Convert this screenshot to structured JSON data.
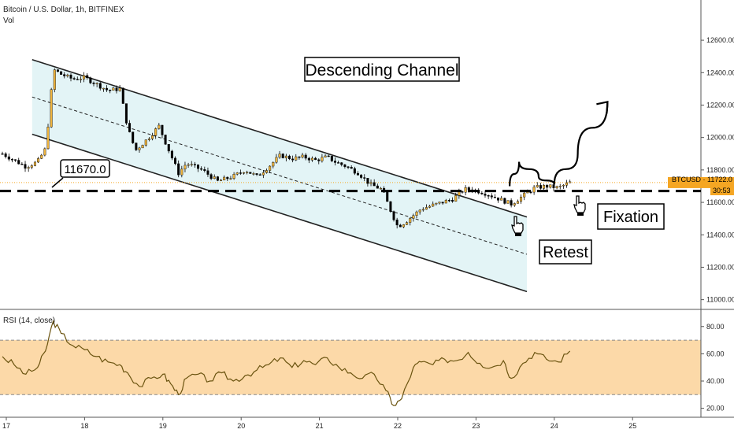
{
  "header": {
    "symbol_title": "Bitcoin / U.S. Dollar, 1h, BITFINEX",
    "volume_label": "Vol"
  },
  "price_axis": {
    "ticks": [
      "12600.00",
      "12400.00",
      "12200.00",
      "12000.00",
      "11800.00",
      "11600.00",
      "11400.00",
      "11200.00",
      "11000.00"
    ]
  },
  "last_price": {
    "label": "BTCUSD · 11722.0",
    "countdown": "30:53",
    "color": "#f5a623"
  },
  "rsi_pane": {
    "label": "RSI (14, close)",
    "ticks": [
      "80.00",
      "60.00",
      "40.00",
      "20.00"
    ],
    "band_color": "#fbd299"
  },
  "time_axis": {
    "ticks": [
      "17",
      "18",
      "19",
      "20",
      "21",
      "22",
      "23",
      "24",
      "25"
    ]
  },
  "annotations": {
    "channel_title": "Descending Channel",
    "level_label": "11670.0",
    "retest": "Retest",
    "fixation": "Fixation"
  },
  "colors": {
    "up_candle": "#f0b43c",
    "down_candle": "#000000",
    "channel_fill": "#e3f4f6",
    "rsi_line": "#6b5410"
  },
  "chart_data": [
    {
      "type": "candlestick",
      "title": "Bitcoin / U.S. Dollar, 1h, BITFINEX",
      "x_unit": "day of month",
      "ylim": [
        10940,
        12780
      ],
      "support_level": 11670.0,
      "last_price": 11722.0,
      "channel": {
        "upper": [
          [
            17.33,
            12480
          ],
          [
            23.65,
            11510
          ]
        ],
        "middle": [
          [
            17.33,
            12250
          ],
          [
            23.65,
            11280
          ]
        ],
        "lower": [
          [
            17.33,
            12020
          ],
          [
            23.65,
            11050
          ]
        ]
      },
      "price_path": [
        [
          16.95,
          11900
        ],
        [
          17.1,
          11860
        ],
        [
          17.25,
          11820
        ],
        [
          17.4,
          11850
        ],
        [
          17.5,
          11930
        ],
        [
          17.55,
          12150
        ],
        [
          17.6,
          12420
        ],
        [
          17.7,
          12390
        ],
        [
          17.85,
          12360
        ],
        [
          18.0,
          12370
        ],
        [
          18.15,
          12330
        ],
        [
          18.3,
          12290
        ],
        [
          18.45,
          12300
        ],
        [
          18.55,
          12060
        ],
        [
          18.65,
          11920
        ],
        [
          18.8,
          11990
        ],
        [
          18.95,
          12070
        ],
        [
          19.05,
          11950
        ],
        [
          19.2,
          11780
        ],
        [
          19.3,
          11840
        ],
        [
          19.5,
          11800
        ],
        [
          19.7,
          11730
        ],
        [
          19.9,
          11760
        ],
        [
          20.05,
          11800
        ],
        [
          20.2,
          11760
        ],
        [
          20.35,
          11820
        ],
        [
          20.5,
          11890
        ],
        [
          20.65,
          11870
        ],
        [
          20.8,
          11880
        ],
        [
          20.95,
          11860
        ],
        [
          21.1,
          11880
        ],
        [
          21.2,
          11850
        ],
        [
          21.35,
          11820
        ],
        [
          21.5,
          11780
        ],
        [
          21.65,
          11710
        ],
        [
          21.8,
          11680
        ],
        [
          21.9,
          11560
        ],
        [
          22.0,
          11450
        ],
        [
          22.1,
          11480
        ],
        [
          22.3,
          11560
        ],
        [
          22.5,
          11590
        ],
        [
          22.7,
          11620
        ],
        [
          22.85,
          11680
        ],
        [
          22.95,
          11680
        ],
        [
          23.1,
          11660
        ],
        [
          23.3,
          11620
        ],
        [
          23.45,
          11590
        ],
        [
          23.6,
          11640
        ],
        [
          23.75,
          11690
        ],
        [
          23.9,
          11700
        ],
        [
          24.05,
          11690
        ],
        [
          24.2,
          11722
        ]
      ],
      "projection": [
        [
          23.43,
          11700
        ],
        [
          23.55,
          11850
        ],
        [
          23.8,
          11760
        ],
        [
          24.0,
          11710
        ],
        [
          24.3,
          11900
        ],
        [
          24.68,
          12220
        ]
      ]
    },
    {
      "type": "line",
      "title": "RSI (14, close)",
      "ylim": [
        14,
        92
      ],
      "band": [
        30,
        70
      ],
      "x": [
        16.95,
        17.1,
        17.25,
        17.4,
        17.5,
        17.6,
        17.7,
        17.85,
        18.0,
        18.15,
        18.3,
        18.45,
        18.55,
        18.7,
        18.85,
        19.0,
        19.1,
        19.2,
        19.3,
        19.45,
        19.6,
        19.75,
        19.9,
        20.05,
        20.2,
        20.35,
        20.5,
        20.65,
        20.8,
        20.95,
        21.1,
        21.25,
        21.4,
        21.55,
        21.7,
        21.85,
        21.95,
        22.05,
        22.2,
        22.3,
        22.45,
        22.6,
        22.75,
        22.9,
        23.05,
        23.2,
        23.35,
        23.45,
        23.6,
        23.75,
        23.9,
        24.05,
        24.2
      ],
      "y": [
        58,
        52,
        45,
        50,
        62,
        84,
        75,
        66,
        63,
        58,
        54,
        52,
        46,
        36,
        42,
        45,
        38,
        30,
        42,
        45,
        40,
        46,
        40,
        44,
        48,
        52,
        57,
        50,
        55,
        52,
        57,
        50,
        46,
        42,
        45,
        33,
        22,
        27,
        50,
        54,
        52,
        56,
        55,
        61,
        53,
        50,
        55,
        42,
        53,
        61,
        56,
        54,
        62
      ]
    }
  ]
}
